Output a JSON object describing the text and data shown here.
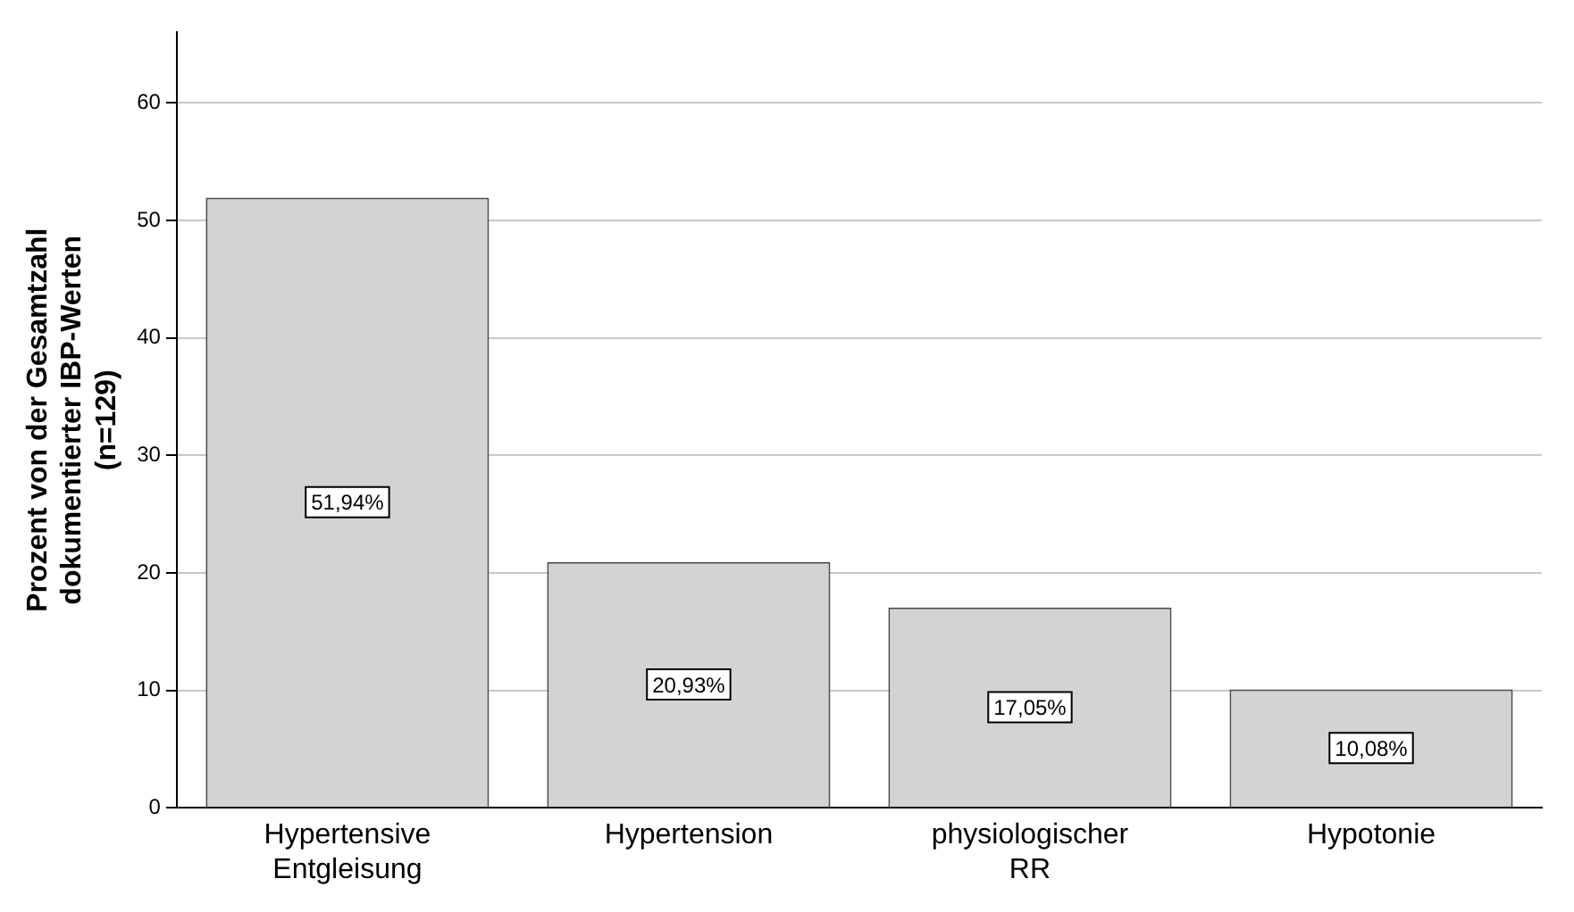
{
  "chart_data": {
    "type": "bar",
    "ylabel": "Prozent von der Gesamtzahl dokumentierter IBP-Werten (n=129)",
    "categories": [
      "Hypertensive Entgleisung",
      "Hypertension",
      "physiologischer RR",
      "Hypotonie"
    ],
    "values": [
      51.94,
      20.93,
      17.05,
      10.08
    ],
    "value_labels": [
      "51,94%",
      "20,93%",
      "17,05%",
      "10,08%"
    ],
    "color": "#d3d3d3",
    "ylim": [
      0,
      66
    ],
    "yticks": [
      0,
      10,
      20,
      30,
      40,
      50,
      60
    ],
    "grid": "y",
    "legend": false
  }
}
